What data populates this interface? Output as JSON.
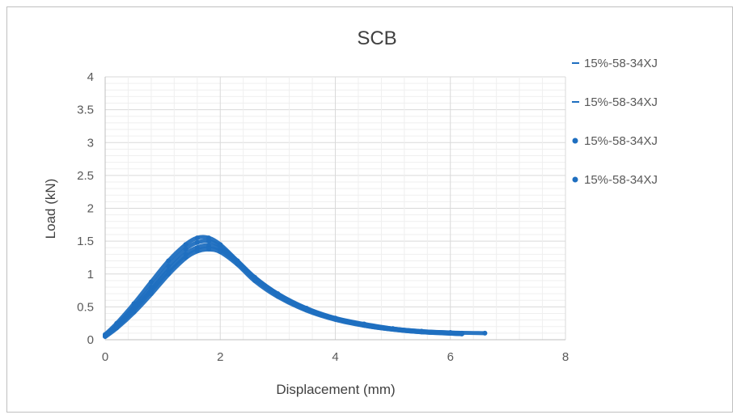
{
  "chart_data": {
    "type": "scatter",
    "title": "SCB",
    "xlabel": "Displacement (mm)",
    "ylabel": "Load (kN)",
    "xlim": [
      0,
      8
    ],
    "ylim": [
      0,
      4
    ],
    "x_ticks": [
      "0",
      "2",
      "4",
      "6",
      "8"
    ],
    "y_ticks": [
      "0",
      "0.5",
      "1",
      "1.5",
      "2",
      "2.5",
      "3",
      "3.5",
      "4"
    ],
    "grid": "major and minor",
    "legend_position": "right",
    "color": "#1f6fc0",
    "series": [
      {
        "name": "15%-58-34XJ",
        "marker": "line",
        "x": [
          0,
          0.2,
          0.5,
          0.8,
          1.1,
          1.4,
          1.6,
          1.8,
          2.0,
          2.3,
          2.6,
          3.0,
          3.5,
          4.0,
          4.5,
          5.0,
          5.5,
          6.0,
          6.6
        ],
        "y": [
          0.08,
          0.25,
          0.55,
          0.88,
          1.2,
          1.45,
          1.55,
          1.55,
          1.45,
          1.2,
          0.95,
          0.7,
          0.48,
          0.33,
          0.24,
          0.17,
          0.13,
          0.11,
          0.1
        ]
      },
      {
        "name": "15%-58-34XJ",
        "marker": "line",
        "x": [
          0,
          0.2,
          0.5,
          0.8,
          1.1,
          1.4,
          1.6,
          1.8,
          2.0,
          2.3,
          2.6,
          3.0,
          3.5,
          4.0,
          4.5,
          5.0,
          5.5,
          6.0,
          6.2
        ],
        "y": [
          0.07,
          0.22,
          0.5,
          0.8,
          1.12,
          1.38,
          1.48,
          1.5,
          1.42,
          1.2,
          0.95,
          0.7,
          0.47,
          0.32,
          0.23,
          0.17,
          0.13,
          0.11,
          0.1
        ]
      },
      {
        "name": "15%-58-34XJ",
        "marker": "dot",
        "x": [
          0,
          0.2,
          0.5,
          0.8,
          1.1,
          1.4,
          1.6,
          1.8,
          2.0,
          2.3,
          2.6,
          3.0,
          3.5,
          4.0,
          4.5,
          5.0,
          5.5,
          6.0,
          6.2
        ],
        "y": [
          0.06,
          0.2,
          0.46,
          0.75,
          1.05,
          1.3,
          1.4,
          1.43,
          1.38,
          1.18,
          0.93,
          0.68,
          0.46,
          0.32,
          0.22,
          0.16,
          0.12,
          0.1,
          0.09
        ]
      },
      {
        "name": "15%-58-34XJ",
        "marker": "dot",
        "x": [
          0,
          0.2,
          0.5,
          0.8,
          1.1,
          1.4,
          1.6,
          1.8,
          2.0,
          2.3,
          2.6,
          3.0,
          3.5,
          4.0,
          4.5,
          5.0,
          5.5,
          6.0,
          6.2
        ],
        "y": [
          0.05,
          0.18,
          0.42,
          0.7,
          1.0,
          1.25,
          1.35,
          1.38,
          1.34,
          1.15,
          0.9,
          0.66,
          0.45,
          0.31,
          0.22,
          0.16,
          0.12,
          0.1,
          0.09
        ]
      }
    ]
  }
}
